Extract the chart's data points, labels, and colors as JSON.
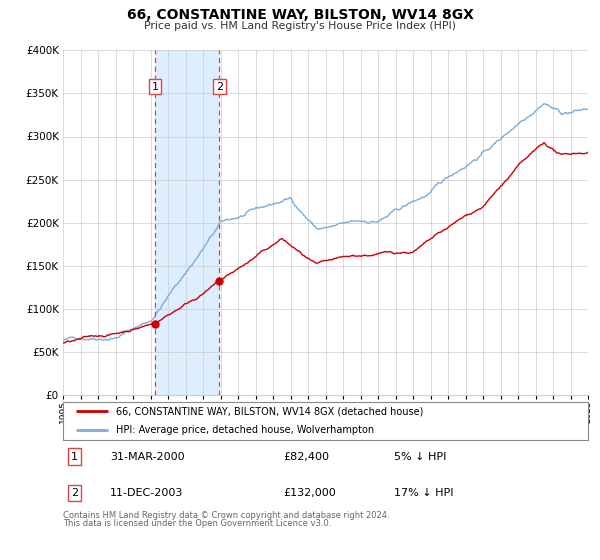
{
  "title": "66, CONSTANTINE WAY, BILSTON, WV14 8GX",
  "subtitle": "Price paid vs. HM Land Registry's House Price Index (HPI)",
  "legend_property": "66, CONSTANTINE WAY, BILSTON, WV14 8GX (detached house)",
  "legend_hpi": "HPI: Average price, detached house, Wolverhampton",
  "transaction1_label": "1",
  "transaction1_date": "31-MAR-2000",
  "transaction1_price": "£82,400",
  "transaction1_hpi": "5% ↓ HPI",
  "transaction1_value": 82400,
  "transaction1_year": 2000.25,
  "transaction2_label": "2",
  "transaction2_date": "11-DEC-2003",
  "transaction2_price": "£132,000",
  "transaction2_hpi": "17% ↓ HPI",
  "transaction2_value": 132000,
  "transaction2_year": 2003.94,
  "footnote1": "Contains HM Land Registry data © Crown copyright and database right 2024.",
  "footnote2": "This data is licensed under the Open Government Licence v3.0.",
  "property_color": "#cc0000",
  "hpi_color": "#7aaddb",
  "shade_color": "#ddeeff",
  "vline_color": "#dd4444",
  "marker_color": "#cc0000",
  "ylim_max": 400000,
  "ylim_min": 0,
  "xstart": 1995,
  "xend": 2025
}
